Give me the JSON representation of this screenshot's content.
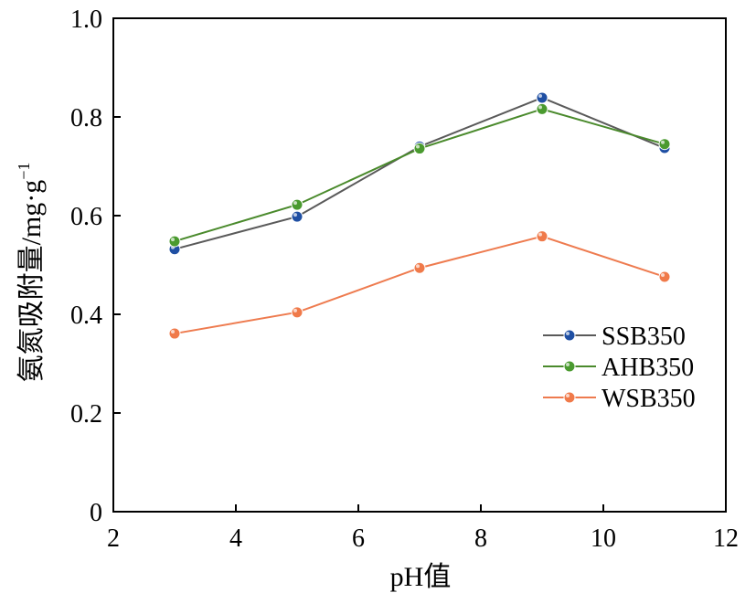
{
  "chart_data": {
    "type": "line",
    "xlabel": "pH值",
    "ylabel": "氨氮吸附量/mg·g",
    "ylabel_sup": "−1",
    "xlim": [
      2,
      12
    ],
    "ylim": [
      0,
      1.0
    ],
    "xticks": [
      2,
      4,
      6,
      8,
      10,
      12
    ],
    "xtick_labels": [
      "2",
      "4",
      "6",
      "8",
      "10",
      "12"
    ],
    "yticks": [
      0,
      0.2,
      0.4,
      0.6,
      0.8,
      1.0
    ],
    "ytick_labels": [
      "0",
      "0.2",
      "0.4",
      "0.6",
      "0.8",
      "1.0"
    ],
    "grid": false,
    "legend_position": "right",
    "series": [
      {
        "name": "SSB350",
        "line_color": "#5a5a5a",
        "marker_color": "#1f4fa3",
        "x": [
          3,
          5,
          7,
          9,
          11
        ],
        "y": [
          0.532,
          0.598,
          0.74,
          0.839,
          0.737
        ]
      },
      {
        "name": "AHB350",
        "line_color": "#4a8a2c",
        "marker_color": "#4a9a2f",
        "x": [
          3,
          5,
          7,
          9,
          11
        ],
        "y": [
          0.548,
          0.622,
          0.736,
          0.816,
          0.745
        ]
      },
      {
        "name": "WSB350",
        "line_color": "#ee7b4f",
        "marker_color": "#f07a4a",
        "x": [
          3,
          5,
          7,
          9,
          11
        ],
        "y": [
          0.361,
          0.404,
          0.494,
          0.558,
          0.476
        ]
      }
    ]
  }
}
